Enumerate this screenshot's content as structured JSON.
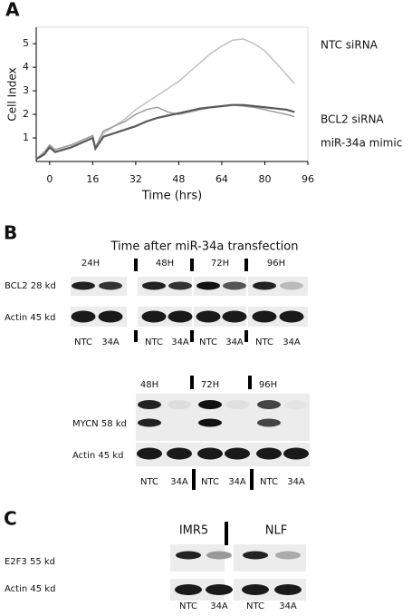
{
  "panel_a": {
    "label": "A"
  },
  "chart_data": {
    "type": "line",
    "x_label": "Time (hrs)",
    "y_label": "Cell Index",
    "x": [
      -5,
      -2,
      0,
      2,
      8,
      14,
      16,
      17,
      20,
      24,
      28,
      32,
      36,
      40,
      44,
      48,
      52,
      56,
      60,
      64,
      68,
      72,
      76,
      80,
      84,
      88,
      91
    ],
    "series": [
      {
        "name": "NTC siRNA",
        "color": "#c4c4c4",
        "values": [
          0.1,
          0.4,
          0.7,
          0.5,
          0.7,
          1.0,
          1.1,
          0.6,
          1.2,
          1.5,
          1.8,
          2.2,
          2.5,
          2.8,
          3.1,
          3.4,
          3.8,
          4.2,
          4.6,
          4.9,
          5.15,
          5.2,
          5.0,
          4.7,
          4.2,
          3.7,
          3.3
        ]
      },
      {
        "name": "BCL2 siRNA",
        "color": "#a0a0a0",
        "values": [
          0.1,
          0.4,
          0.7,
          0.5,
          0.7,
          1.0,
          1.1,
          0.6,
          1.3,
          1.5,
          1.7,
          2.0,
          2.2,
          2.3,
          2.1,
          2.0,
          2.1,
          2.2,
          2.3,
          2.35,
          2.4,
          2.35,
          2.3,
          2.2,
          2.1,
          2.0,
          1.9
        ]
      },
      {
        "name": "miR-34a mimic",
        "color": "#5a5a5a",
        "values": [
          0.1,
          0.3,
          0.6,
          0.4,
          0.6,
          0.9,
          1.0,
          0.55,
          1.05,
          1.2,
          1.35,
          1.5,
          1.7,
          1.85,
          1.95,
          2.05,
          2.15,
          2.25,
          2.3,
          2.35,
          2.4,
          2.4,
          2.35,
          2.3,
          2.25,
          2.2,
          2.1
        ]
      }
    ],
    "xlim": [
      -5,
      96
    ],
    "ylim": [
      0,
      5.7
    ],
    "xticks": [
      0,
      16,
      32,
      48,
      64,
      80,
      96
    ],
    "yticks": [
      1,
      2,
      3,
      4,
      5
    ],
    "grid": false,
    "legend_position": "right"
  },
  "panel_b": {
    "label": "B",
    "title": "Time after miR-34a transfection",
    "blot1": {
      "timepoints": [
        "24H",
        "48H",
        "72H",
        "96H"
      ],
      "rows": [
        "BCL2 28 kd",
        "Actin 45 kd"
      ],
      "lanes": [
        "NTC",
        "34A",
        "NTC",
        "34A",
        "NTC",
        "34A",
        "NTC",
        "34A"
      ]
    },
    "blot2": {
      "timepoints": [
        "48H",
        "72H",
        "96H"
      ],
      "rows": [
        "MYCN 58 kd",
        "Actin 45 kd"
      ],
      "lanes": [
        "NTC",
        "34A",
        "NTC",
        "34A",
        "NTC",
        "34A"
      ]
    }
  },
  "panel_c": {
    "label": "C",
    "groups": [
      "IMR5",
      "NLF"
    ],
    "rows": [
      "E2F3 55 kd",
      "Actin 45 kd"
    ],
    "lanes": [
      "NTC",
      "34A",
      "NTC",
      "34A"
    ]
  }
}
